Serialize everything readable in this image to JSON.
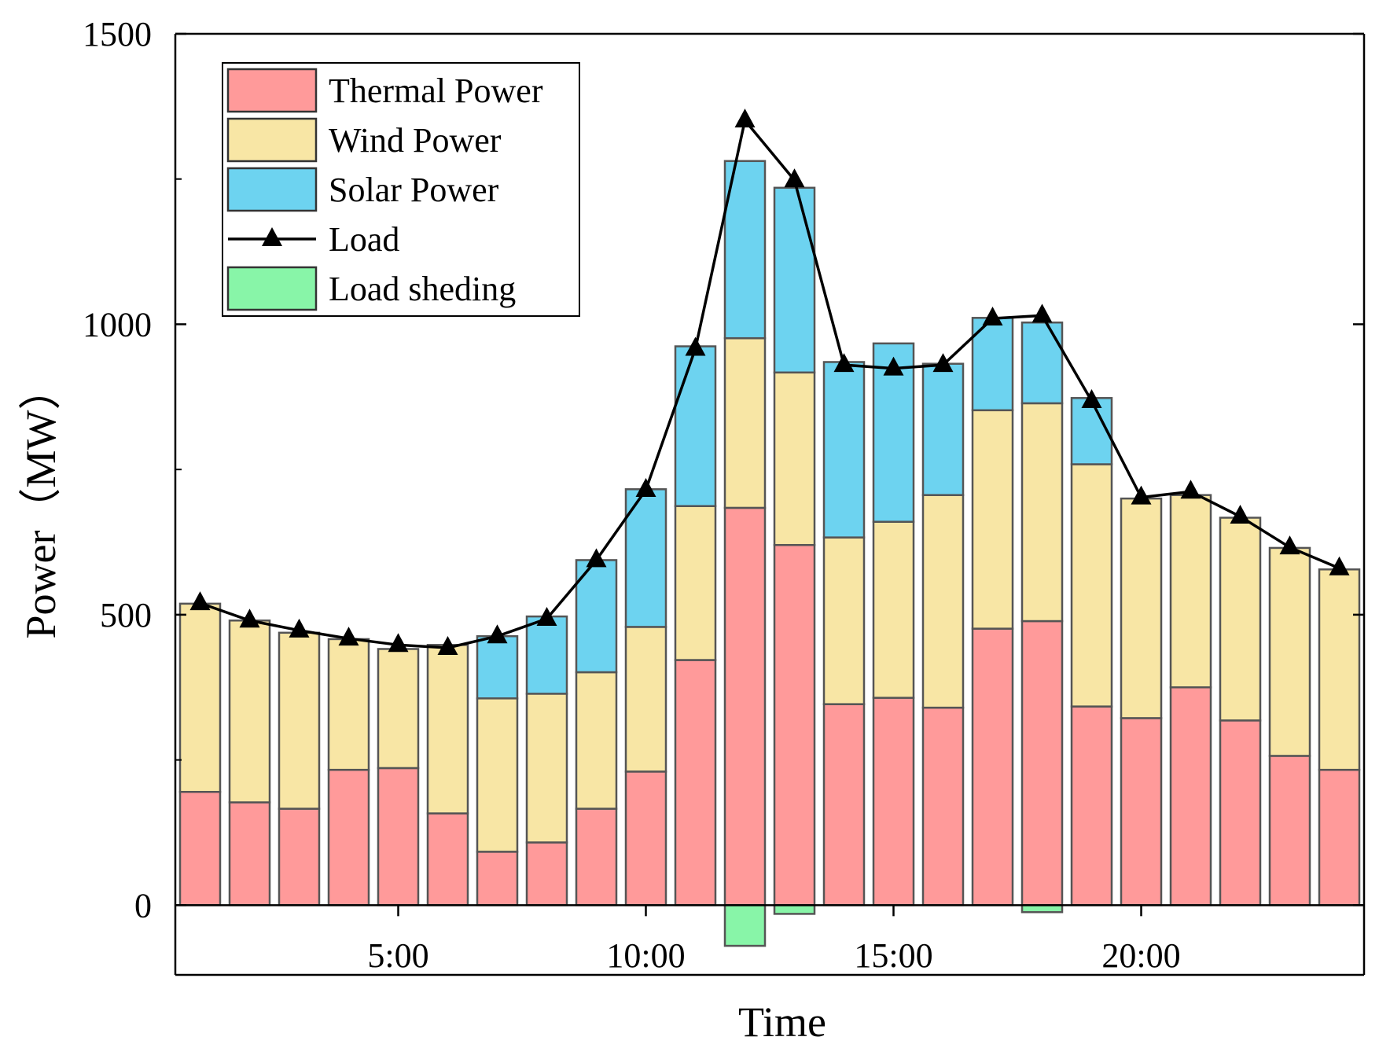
{
  "chart_data": {
    "type": "bar",
    "stacked": true,
    "xlabel": "Time",
    "ylabel": "Power（MW）",
    "ylim": [
      -120,
      1500
    ],
    "yticks": [
      0,
      500,
      1000,
      1500
    ],
    "ytick_labels": [
      "0",
      "500",
      "1000",
      "1500"
    ],
    "xlim": [
      0.5,
      24.5
    ],
    "xticks": [
      5,
      10,
      15,
      20
    ],
    "xtick_labels": [
      "5:00",
      "10:00",
      "15:00",
      "20:00"
    ],
    "hours": [
      1,
      2,
      3,
      4,
      5,
      6,
      7,
      8,
      9,
      10,
      11,
      12,
      13,
      14,
      15,
      16,
      17,
      18,
      19,
      20,
      21,
      22,
      23,
      24
    ],
    "series": [
      {
        "name": "Thermal Power",
        "color": "#ff9a9a",
        "values": [
          195,
          177,
          166,
          233,
          236,
          158,
          92,
          108,
          166,
          230,
          422,
          684,
          620,
          346,
          357,
          340,
          476,
          489,
          342,
          322,
          375,
          318,
          257,
          233
        ]
      },
      {
        "name": "Wind Power",
        "color": "#f8e6a5",
        "values": [
          324,
          313,
          303,
          225,
          205,
          290,
          264,
          256,
          235,
          249,
          265,
          292,
          297,
          287,
          303,
          366,
          376,
          375,
          417,
          378,
          331,
          349,
          358,
          345
        ]
      },
      {
        "name": "Solar Power",
        "color": "#6dd3f0",
        "values": [
          0,
          0,
          0,
          0,
          0,
          0,
          107,
          133,
          193,
          237,
          275,
          305,
          318,
          302,
          307,
          226,
          159,
          139,
          114,
          0,
          0,
          0,
          0,
          0
        ]
      }
    ],
    "load_sheding": {
      "name": "Load sheding",
      "color": "#88f5a8",
      "values": [
        0,
        0,
        0,
        0,
        0,
        0,
        0,
        0,
        0,
        0,
        0,
        70,
        15,
        0,
        0,
        0,
        0,
        12,
        0,
        0,
        0,
        0,
        0,
        0
      ]
    },
    "load": {
      "name": "Load",
      "values": [
        520,
        490,
        473,
        459,
        448,
        443,
        463,
        493,
        594,
        715,
        958,
        1351,
        1248,
        930,
        924,
        930,
        1010,
        1015,
        868,
        702,
        712,
        669,
        616,
        580
      ]
    },
    "legend_position": "top-left",
    "grid": false
  }
}
